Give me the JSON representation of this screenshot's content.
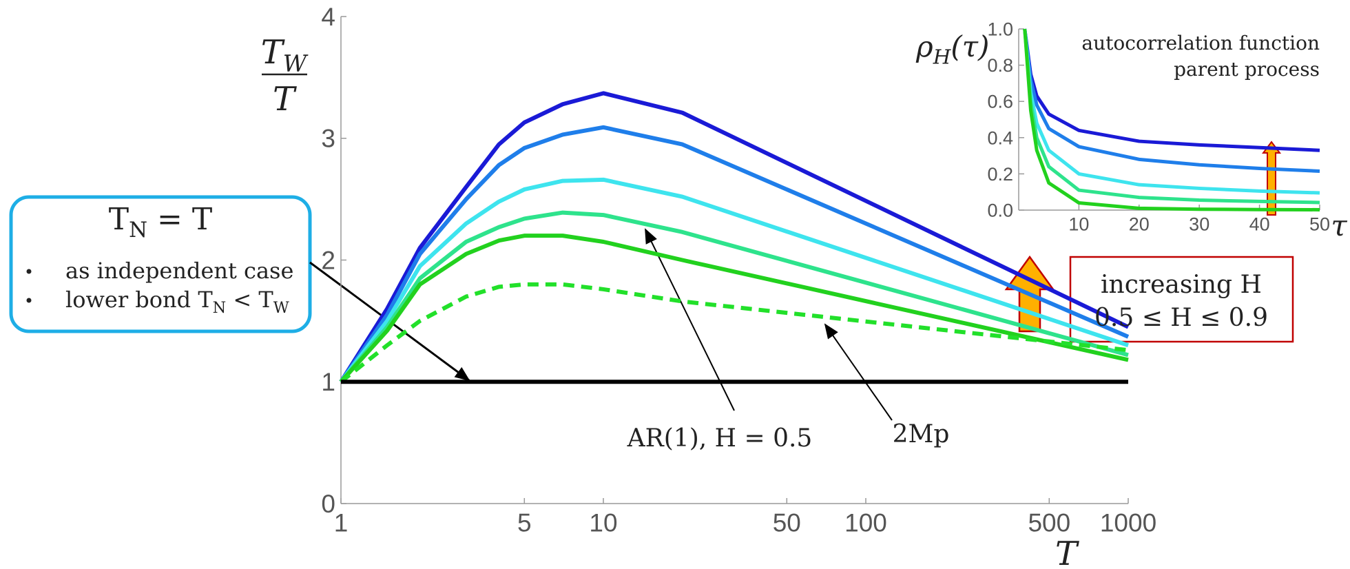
{
  "chart_data": [
    {
      "type": "line",
      "xscale": "log",
      "ylabel": {
        "numerator": [
          {
            "text": "T"
          },
          {
            "sub": "W"
          }
        ],
        "denominator": [
          {
            "text": "T"
          }
        ]
      },
      "xlabel": [
        {
          "text": "T"
        }
      ],
      "x": [
        1,
        1.5,
        2,
        3,
        4,
        5,
        7,
        10,
        20,
        1000
      ],
      "xlim": [
        1,
        1000
      ],
      "xticks": [
        1,
        5,
        10,
        50,
        100,
        500,
        1000
      ],
      "ylim": [
        0,
        4
      ],
      "yticks": [
        0,
        1,
        2,
        3,
        4
      ],
      "series": [
        {
          "color": "#1a1ad6",
          "values": [
            1,
            1.6,
            2.1,
            2.6,
            2.95,
            3.13,
            3.28,
            3.37,
            3.21,
            1.45
          ]
        },
        {
          "color": "#1f7eea",
          "values": [
            1,
            1.55,
            2.05,
            2.5,
            2.78,
            2.92,
            3.03,
            3.09,
            2.95,
            1.37
          ]
        },
        {
          "color": "#3ee4ee",
          "values": [
            1,
            1.5,
            1.95,
            2.3,
            2.48,
            2.58,
            2.65,
            2.66,
            2.52,
            1.3
          ]
        },
        {
          "color": "#2ee38c",
          "values": [
            1,
            1.45,
            1.85,
            2.15,
            2.27,
            2.34,
            2.39,
            2.37,
            2.23,
            1.22
          ]
        },
        {
          "color": "#22d11e",
          "values": [
            1,
            1.42,
            1.8,
            2.05,
            2.16,
            2.2,
            2.2,
            2.15,
            2.0,
            1.18
          ]
        },
        {
          "name": "2Mp",
          "color": "#22e02a",
          "dashed": true,
          "values": [
            1,
            1.3,
            1.5,
            1.7,
            1.78,
            1.8,
            1.8,
            1.76,
            1.66,
            1.26
          ]
        },
        {
          "color": "#000000",
          "values": [
            1,
            1,
            1,
            1,
            1,
            1,
            1,
            1,
            1,
            1
          ]
        }
      ],
      "annotations": {
        "ar1": [
          {
            "text": "AR(1), H = 0.5"
          }
        ],
        "box_title": [
          {
            "text": "T"
          },
          {
            "sub": "N"
          },
          {
            "text": " = T"
          }
        ],
        "box_items": [
          [
            {
              "text": "as independent case"
            }
          ],
          [
            {
              "text": "lower bond T"
            },
            {
              "sub": "N"
            },
            {
              "text": " < T"
            },
            {
              "sub": "W"
            }
          ]
        ],
        "increasing": [
          [
            {
              "text": "increasing H"
            }
          ],
          [
            {
              "text": "0.5 ≤ H ≤ 0.9"
            }
          ]
        ]
      }
    },
    {
      "type": "line",
      "title": [
        "autocorrelation function",
        "parent process"
      ],
      "ylabel": [
        {
          "text": "ρ"
        },
        {
          "sub": "H"
        },
        {
          "text": "(τ)"
        }
      ],
      "xlabel": [
        {
          "text": "τ"
        }
      ],
      "x": [
        1,
        2,
        3,
        5,
        10,
        20,
        30,
        40,
        50
      ],
      "xlim": [
        0,
        50
      ],
      "xticks": [
        10,
        20,
        30,
        40,
        50
      ],
      "ylim": [
        0,
        1
      ],
      "yticks": [
        {
          "value": 0,
          "label": "0.0"
        },
        0.2,
        0.4,
        0.6,
        0.8,
        {
          "value": 1,
          "label": "1.0"
        }
      ],
      "series": [
        {
          "color": "#1a1ad6",
          "values": [
            1,
            0.75,
            0.63,
            0.53,
            0.44,
            0.38,
            0.36,
            0.345,
            0.33
          ]
        },
        {
          "color": "#1f7eea",
          "values": [
            1,
            0.72,
            0.58,
            0.45,
            0.35,
            0.28,
            0.25,
            0.23,
            0.215
          ]
        },
        {
          "color": "#3ee4ee",
          "values": [
            1,
            0.65,
            0.48,
            0.33,
            0.2,
            0.14,
            0.12,
            0.105,
            0.095
          ]
        },
        {
          "color": "#2ee38c",
          "values": [
            1,
            0.6,
            0.4,
            0.24,
            0.11,
            0.07,
            0.055,
            0.048,
            0.042
          ]
        },
        {
          "color": "#22d11e",
          "values": [
            1,
            0.55,
            0.33,
            0.15,
            0.04,
            0.01,
            0.005,
            0.003,
            0.002
          ]
        }
      ]
    }
  ]
}
